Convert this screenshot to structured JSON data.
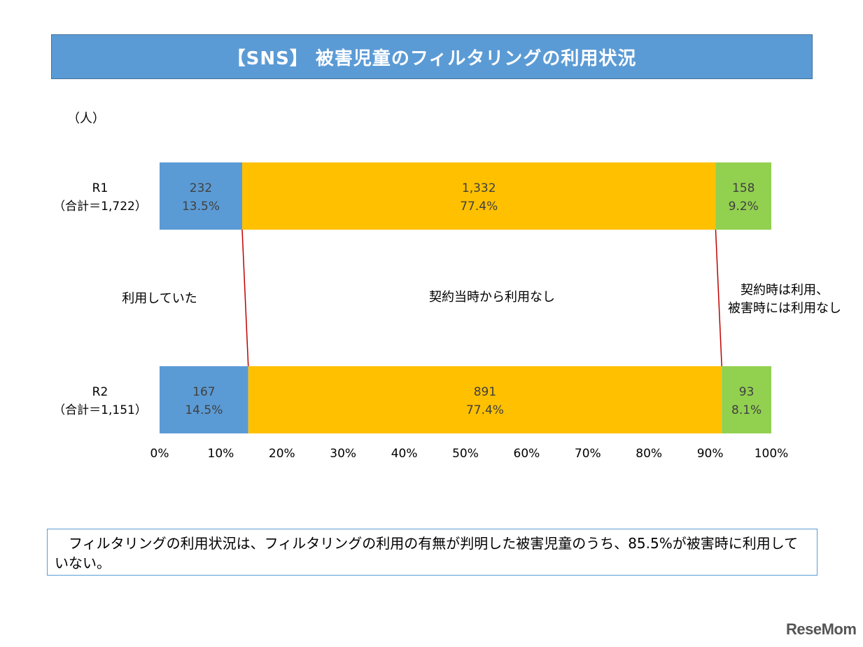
{
  "header": {
    "title": "【SNS】 被害児童のフィルタリングの利用状況"
  },
  "unit": "（人）",
  "chart_data": {
    "type": "bar",
    "orientation": "horizontal",
    "stacked": "percent",
    "categories": [
      "R1",
      "R2"
    ],
    "category_totals": [
      "（合計＝1,722）",
      "（合計＝1,151）"
    ],
    "series": [
      {
        "name": "利用していた",
        "counts": [
          232,
          167
        ],
        "values": [
          13.5,
          14.5
        ],
        "color": "#5b9bd5"
      },
      {
        "name": "契約当時から利用なし",
        "counts": [
          1332,
          891
        ],
        "values": [
          77.4,
          77.4
        ],
        "color": "#ffc000"
      },
      {
        "name": "契約時は利用、被害時には利用なし",
        "counts": [
          158,
          93
        ],
        "values": [
          9.2,
          8.1
        ],
        "color": "#92d050"
      }
    ],
    "series_labels": [
      "利用していた",
      "契約当時から利用なし",
      "契約時は利用、",
      "被害時には利用なし"
    ],
    "count_labels": [
      [
        "232",
        "1,332",
        "158"
      ],
      [
        "167",
        "891",
        "93"
      ]
    ],
    "percent_labels": [
      [
        "13.5%",
        "77.4%",
        "9.2%"
      ],
      [
        "14.5%",
        "77.4%",
        "8.1%"
      ]
    ],
    "xlim": [
      0,
      100
    ],
    "xticks": [
      "0%",
      "10%",
      "20%",
      "30%",
      "40%",
      "50%",
      "60%",
      "70%",
      "80%",
      "90%",
      "100%"
    ],
    "connector_color": "#c00000",
    "grid": false
  },
  "note": "フィルタリングの利用状況は、フィルタリングの利用の有無が判明した被害児童のうち、85.5%が被害時に利用していない。",
  "logo": "ReseMom"
}
